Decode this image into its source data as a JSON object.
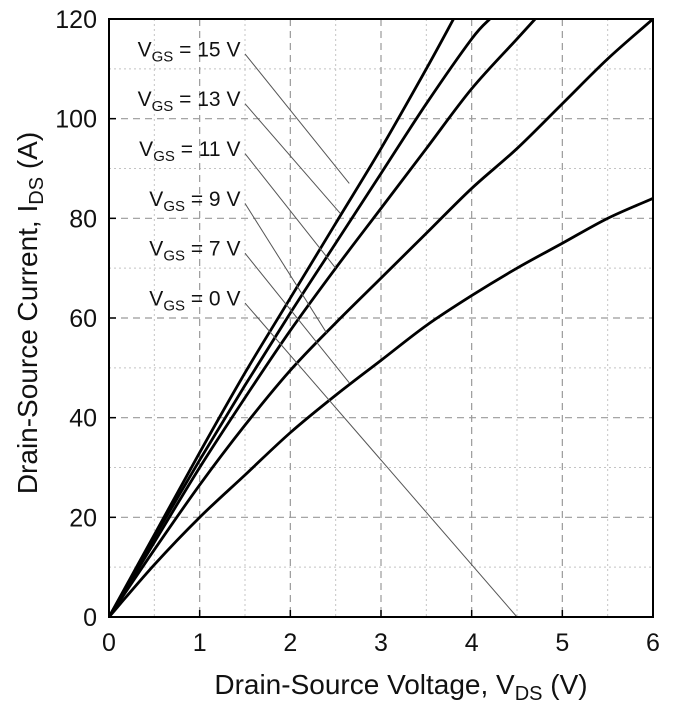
{
  "chart_data": {
    "type": "line",
    "xlabel": {
      "main": "Drain-Source Voltage, V",
      "sub": "DS",
      "unit": " (V)"
    },
    "ylabel": {
      "main": "Drain-Source Current, I",
      "sub": "DS",
      "unit": " (A)"
    },
    "xlim": [
      0,
      6
    ],
    "ylim": [
      0,
      120
    ],
    "x_ticks": [
      "0",
      "1",
      "2",
      "3",
      "4",
      "5",
      "6"
    ],
    "y_ticks": [
      "0",
      "20",
      "40",
      "60",
      "80",
      "100",
      "120"
    ],
    "grid": true,
    "series": [
      {
        "name": "15 V",
        "label_main": "V",
        "label_sub": "GS",
        "label_value": " = 15 V",
        "x": [
          0,
          0.5,
          1,
          1.5,
          2,
          2.5,
          3,
          3.5,
          3.8
        ],
        "y": [
          0,
          16.5,
          33,
          49,
          64,
          79,
          94,
          110,
          120
        ]
      },
      {
        "name": "13 V",
        "label_main": "V",
        "label_sub": "GS",
        "label_value": " = 13 V",
        "x": [
          0,
          0.5,
          1,
          1.5,
          2,
          2.5,
          3,
          3.5,
          4,
          4.2
        ],
        "y": [
          0,
          16,
          31.5,
          46.5,
          61,
          75,
          89,
          103,
          116,
          120
        ]
      },
      {
        "name": "11 V",
        "label_main": "V",
        "label_sub": "GS",
        "label_value": " = 11 V",
        "x": [
          0,
          0.5,
          1,
          1.5,
          2,
          2.5,
          3,
          3.5,
          4,
          4.5,
          4.7
        ],
        "y": [
          0,
          15,
          30,
          44,
          57.5,
          70,
          82,
          94,
          106,
          116,
          120
        ]
      },
      {
        "name": "9 V",
        "label_main": "V",
        "label_sub": "GS",
        "label_value": " = 9 V",
        "x": [
          0,
          0.5,
          1,
          1.5,
          2,
          2.5,
          3,
          3.5,
          4,
          4.5,
          5,
          5.5,
          6
        ],
        "y": [
          0,
          13.5,
          26.5,
          38.5,
          49.5,
          59,
          68,
          77,
          86,
          94,
          103,
          112,
          120
        ]
      },
      {
        "name": "7 V",
        "label_main": "V",
        "label_sub": "GS",
        "label_value": " = 7 V",
        "x": [
          0,
          0.5,
          1,
          1.5,
          2,
          2.5,
          3,
          3.5,
          4,
          4.5,
          5,
          5.5,
          6
        ],
        "y": [
          0,
          10.5,
          20,
          28.5,
          37,
          44.5,
          51.5,
          58.5,
          64.5,
          70,
          75,
          80,
          84
        ]
      },
      {
        "name": "0 V",
        "label_main": "V",
        "label_sub": "GS",
        "label_value": " = 0 V",
        "x": [],
        "y": []
      }
    ],
    "annotations": [
      {
        "series": "15 V",
        "label_x": 1.45,
        "label_y": 112.5,
        "anchor_x": 1.5,
        "anchor_y": 113,
        "target_x": 2.65,
        "target_y": 87
      },
      {
        "series": "13 V",
        "label_x": 1.45,
        "label_y": 102.5,
        "anchor_x": 1.5,
        "anchor_y": 103,
        "target_x": 2.55,
        "target_y": 81
      },
      {
        "series": "11 V",
        "label_x": 1.45,
        "label_y": 92.5,
        "anchor_x": 1.5,
        "anchor_y": 93,
        "target_x": 2.5,
        "target_y": 70
      },
      {
        "series": "9 V",
        "label_x": 1.45,
        "label_y": 82.5,
        "anchor_x": 1.5,
        "anchor_y": 83,
        "target_x": 2.4,
        "target_y": 57
      },
      {
        "series": "7 V",
        "label_x": 1.45,
        "label_y": 72.5,
        "anchor_x": 1.5,
        "anchor_y": 73,
        "target_x": 2.65,
        "target_y": 47
      },
      {
        "series": "0 V",
        "label_x": 1.45,
        "label_y": 62.5,
        "anchor_x": 1.5,
        "anchor_y": 63,
        "target_x": 4.5,
        "target_y": 0
      }
    ]
  }
}
